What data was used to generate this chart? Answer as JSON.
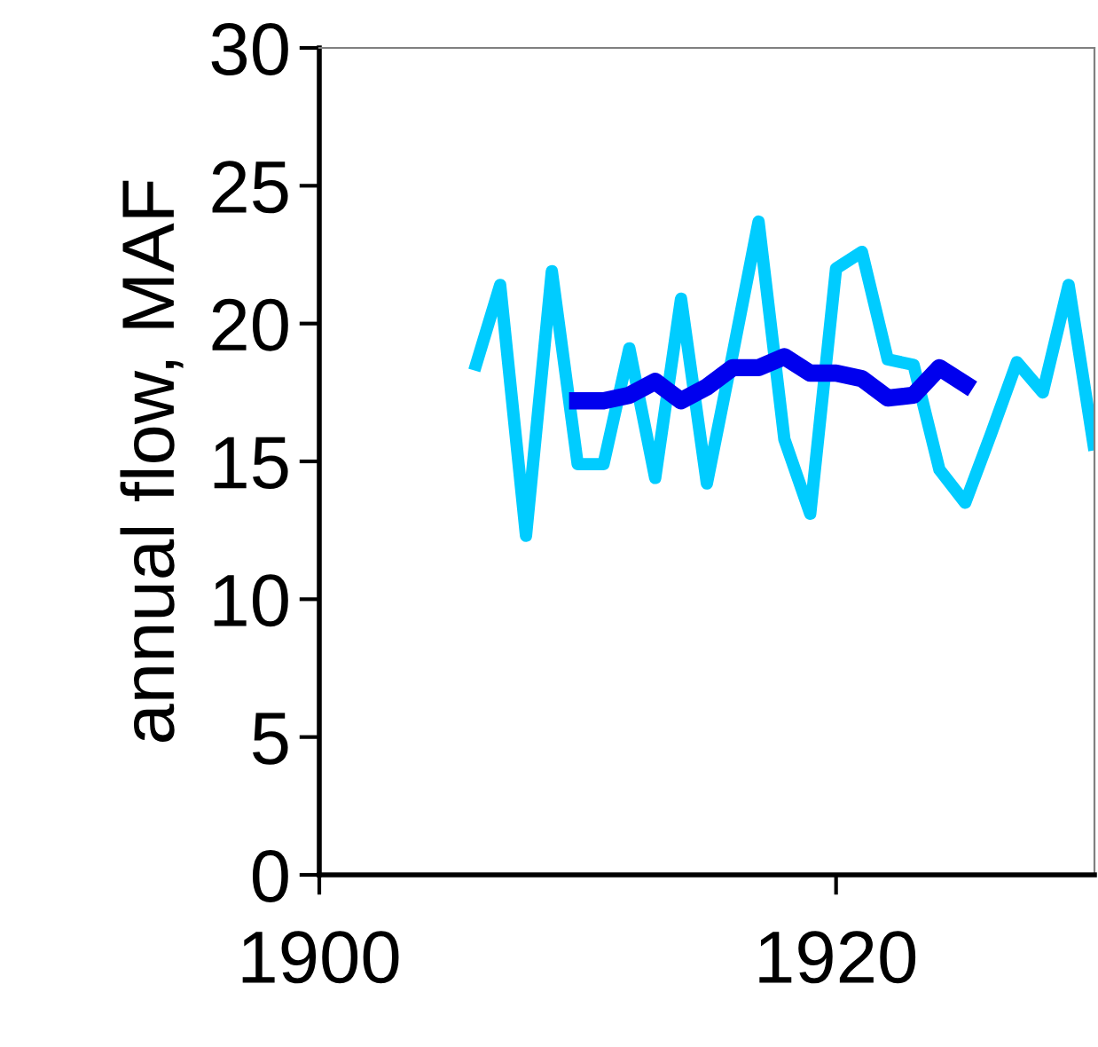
{
  "chart_data": {
    "type": "line",
    "ylabel": "annual flow, MAF",
    "xlim": [
      1900,
      1930
    ],
    "xticks": [
      1900,
      1920
    ],
    "ylim": [
      0,
      30
    ],
    "yticks": [
      0,
      5,
      10,
      15,
      20,
      25,
      30
    ],
    "grid": false,
    "legend": false,
    "marker": "none",
    "line_style": "solid",
    "series": [
      {
        "color": "#00ccff",
        "x": [
          1906,
          1907,
          1908,
          1909,
          1910,
          1911,
          1912,
          1913,
          1914,
          1915,
          1916,
          1917,
          1918,
          1919,
          1920,
          1921,
          1922,
          1923,
          1924,
          1925,
          1926,
          1927,
          1928,
          1929,
          1930
        ],
        "values": [
          18.3,
          21.4,
          12.3,
          21.9,
          14.9,
          14.9,
          19.1,
          14.4,
          20.9,
          14.2,
          18.9,
          23.7,
          15.8,
          13.1,
          22.0,
          22.6,
          18.7,
          18.5,
          14.7,
          13.5,
          16.0,
          18.6,
          17.5,
          21.4,
          15.4
        ]
      },
      {
        "color": "#0000ee",
        "x": [
          1910,
          1911,
          1912,
          1913,
          1914,
          1915,
          1916,
          1917,
          1918,
          1919,
          1920,
          1921,
          1922,
          1923,
          1924,
          1925
        ],
        "values": [
          17.2,
          17.2,
          17.4,
          17.9,
          17.2,
          17.7,
          18.4,
          18.4,
          18.8,
          18.2,
          18.2,
          18.0,
          17.3,
          17.4,
          18.4,
          17.8
        ]
      }
    ]
  }
}
